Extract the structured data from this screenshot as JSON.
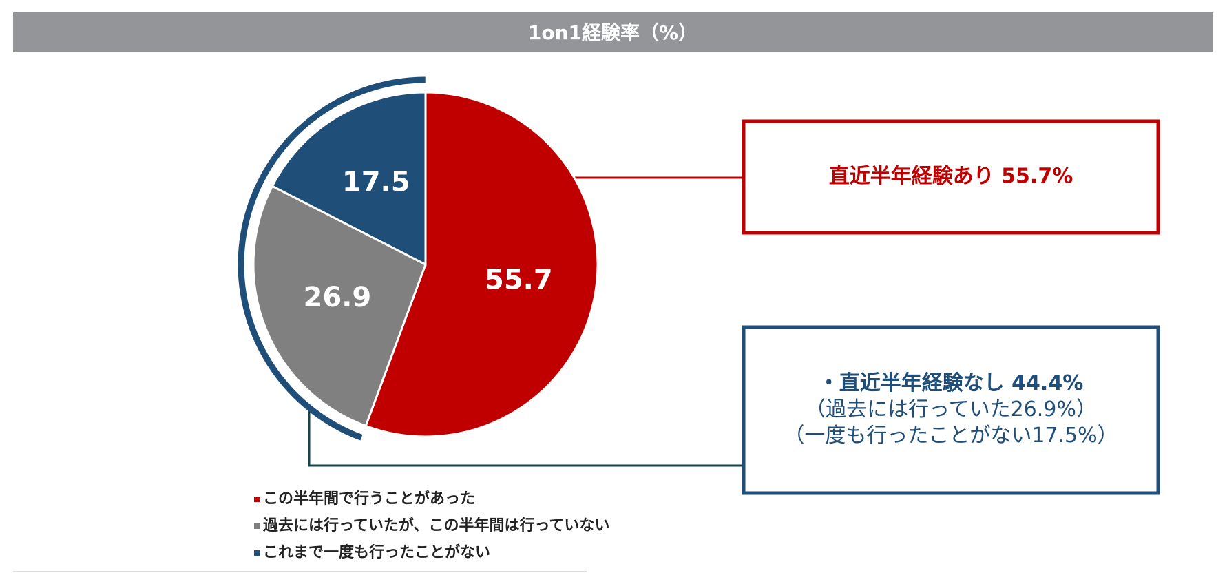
{
  "chart_data": {
    "type": "pie",
    "title": "1on1経験率（%）",
    "categories": [
      "この半年間で行うことがあった",
      "過去には行っていたが、この半年間は行っていない",
      "これまで一度も行ったことがない"
    ],
    "values": [
      55.7,
      26.9,
      17.5
    ],
    "colors": [
      "#c00000",
      "#808080",
      "#1f4e79"
    ],
    "annotations": [
      {
        "lines": [
          "直近半年経験あり  55.7%"
        ],
        "color": "#c00000"
      },
      {
        "lines": [
          "・直近半年経験なし  44.4%",
          "（過去には行っていた26.9%）",
          "（一度も行ったことがない17.5%）"
        ],
        "color": "#1f4e79"
      }
    ]
  }
}
